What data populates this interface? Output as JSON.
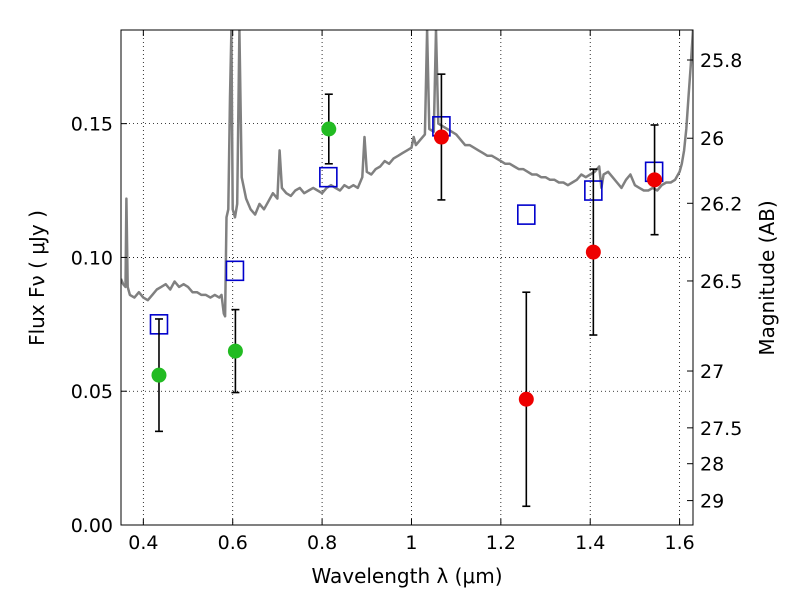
{
  "chart_data": {
    "type": "scatter",
    "title": "",
    "xlabel": "Wavelength  λ (μm)",
    "ylabel": "Flux  Fν  ( μJy )",
    "y2label": "Magnitude (AB)",
    "xlim": [
      0.35,
      1.63
    ],
    "ylim": [
      0.0,
      0.185
    ],
    "grid": true,
    "x_ticks": [
      {
        "value": 0.4,
        "label": "0.4"
      },
      {
        "value": 0.6,
        "label": "0.6"
      },
      {
        "value": 0.8,
        "label": "0.8"
      },
      {
        "value": 1.0,
        "label": "1"
      },
      {
        "value": 1.2,
        "label": "1.2"
      },
      {
        "value": 1.4,
        "label": "1.4"
      },
      {
        "value": 1.6,
        "label": "1.6"
      }
    ],
    "y_ticks": [
      {
        "value": 0.0,
        "label": "0.00"
      },
      {
        "value": 0.05,
        "label": "0.05"
      },
      {
        "value": 0.1,
        "label": "0.10"
      },
      {
        "value": 0.15,
        "label": "0.15"
      }
    ],
    "y2_ticks": [
      {
        "value": 25.8,
        "label": "25.8"
      },
      {
        "value": 26.0,
        "label": "26"
      },
      {
        "value": 26.2,
        "label": "26.2"
      },
      {
        "value": 26.5,
        "label": "26.5"
      },
      {
        "value": 27.0,
        "label": "27"
      },
      {
        "value": 27.5,
        "label": "27.5"
      },
      {
        "value": 28.0,
        "label": "28"
      },
      {
        "value": 29.0,
        "label": "29"
      }
    ],
    "series": [
      {
        "kind": "line",
        "color": "#808080",
        "points": [
          [
            0.35,
            0.092
          ],
          [
            0.355,
            0.09
          ],
          [
            0.36,
            0.089
          ],
          [
            0.362,
            0.122
          ],
          [
            0.365,
            0.089
          ],
          [
            0.37,
            0.086
          ],
          [
            0.38,
            0.085
          ],
          [
            0.39,
            0.087
          ],
          [
            0.4,
            0.085
          ],
          [
            0.41,
            0.084
          ],
          [
            0.42,
            0.086
          ],
          [
            0.43,
            0.088
          ],
          [
            0.44,
            0.089
          ],
          [
            0.45,
            0.09
          ],
          [
            0.46,
            0.088
          ],
          [
            0.47,
            0.091
          ],
          [
            0.48,
            0.089
          ],
          [
            0.49,
            0.09
          ],
          [
            0.5,
            0.089
          ],
          [
            0.51,
            0.087
          ],
          [
            0.52,
            0.087
          ],
          [
            0.53,
            0.086
          ],
          [
            0.54,
            0.086
          ],
          [
            0.55,
            0.085
          ],
          [
            0.56,
            0.086
          ],
          [
            0.57,
            0.085
          ],
          [
            0.575,
            0.086
          ],
          [
            0.58,
            0.079
          ],
          [
            0.583,
            0.078
          ],
          [
            0.586,
            0.115
          ],
          [
            0.59,
            0.118
          ],
          [
            0.594,
            0.16
          ],
          [
            0.597,
            0.185
          ],
          [
            0.6,
            0.118
          ],
          [
            0.605,
            0.115
          ],
          [
            0.61,
            0.12
          ],
          [
            0.615,
            0.185
          ],
          [
            0.62,
            0.13
          ],
          [
            0.63,
            0.122
          ],
          [
            0.64,
            0.118
          ],
          [
            0.65,
            0.116
          ],
          [
            0.66,
            0.12
          ],
          [
            0.67,
            0.118
          ],
          [
            0.68,
            0.121
          ],
          [
            0.69,
            0.124
          ],
          [
            0.7,
            0.122
          ],
          [
            0.705,
            0.14
          ],
          [
            0.71,
            0.126
          ],
          [
            0.72,
            0.124
          ],
          [
            0.73,
            0.123
          ],
          [
            0.74,
            0.125
          ],
          [
            0.75,
            0.126
          ],
          [
            0.76,
            0.124
          ],
          [
            0.77,
            0.125
          ],
          [
            0.78,
            0.126
          ],
          [
            0.79,
            0.125
          ],
          [
            0.8,
            0.124
          ],
          [
            0.81,
            0.126
          ],
          [
            0.82,
            0.127
          ],
          [
            0.83,
            0.126
          ],
          [
            0.84,
            0.125
          ],
          [
            0.85,
            0.127
          ],
          [
            0.86,
            0.126
          ],
          [
            0.87,
            0.127
          ],
          [
            0.88,
            0.126
          ],
          [
            0.89,
            0.13
          ],
          [
            0.895,
            0.145
          ],
          [
            0.9,
            0.132
          ],
          [
            0.91,
            0.131
          ],
          [
            0.92,
            0.133
          ],
          [
            0.93,
            0.134
          ],
          [
            0.94,
            0.136
          ],
          [
            0.95,
            0.135
          ],
          [
            0.96,
            0.137
          ],
          [
            0.97,
            0.138
          ],
          [
            0.98,
            0.139
          ],
          [
            0.99,
            0.14
          ],
          [
            1.0,
            0.141
          ],
          [
            1.005,
            0.145
          ],
          [
            1.01,
            0.142
          ],
          [
            1.02,
            0.144
          ],
          [
            1.03,
            0.146
          ],
          [
            1.035,
            0.185
          ],
          [
            1.04,
            0.148
          ],
          [
            1.05,
            0.147
          ],
          [
            1.055,
            0.185
          ],
          [
            1.06,
            0.15
          ],
          [
            1.07,
            0.149
          ],
          [
            1.08,
            0.148
          ],
          [
            1.09,
            0.147
          ],
          [
            1.1,
            0.146
          ],
          [
            1.11,
            0.144
          ],
          [
            1.12,
            0.142
          ],
          [
            1.13,
            0.142
          ],
          [
            1.14,
            0.141
          ],
          [
            1.15,
            0.14
          ],
          [
            1.16,
            0.139
          ],
          [
            1.17,
            0.138
          ],
          [
            1.18,
            0.138
          ],
          [
            1.19,
            0.137
          ],
          [
            1.2,
            0.136
          ],
          [
            1.21,
            0.135
          ],
          [
            1.22,
            0.135
          ],
          [
            1.23,
            0.134
          ],
          [
            1.24,
            0.133
          ],
          [
            1.25,
            0.133
          ],
          [
            1.26,
            0.132
          ],
          [
            1.27,
            0.131
          ],
          [
            1.28,
            0.131
          ],
          [
            1.29,
            0.13
          ],
          [
            1.3,
            0.13
          ],
          [
            1.31,
            0.129
          ],
          [
            1.32,
            0.129
          ],
          [
            1.33,
            0.128
          ],
          [
            1.34,
            0.128
          ],
          [
            1.35,
            0.127
          ],
          [
            1.36,
            0.128
          ],
          [
            1.37,
            0.129
          ],
          [
            1.38,
            0.131
          ],
          [
            1.39,
            0.13
          ],
          [
            1.4,
            0.131
          ],
          [
            1.41,
            0.132
          ],
          [
            1.42,
            0.134
          ],
          [
            1.425,
            0.126
          ],
          [
            1.43,
            0.131
          ],
          [
            1.44,
            0.132
          ],
          [
            1.45,
            0.13
          ],
          [
            1.46,
            0.128
          ],
          [
            1.47,
            0.126
          ],
          [
            1.48,
            0.129
          ],
          [
            1.49,
            0.131
          ],
          [
            1.5,
            0.127
          ],
          [
            1.51,
            0.126
          ],
          [
            1.52,
            0.125
          ],
          [
            1.53,
            0.125
          ],
          [
            1.54,
            0.126
          ],
          [
            1.55,
            0.125
          ],
          [
            1.56,
            0.127
          ],
          [
            1.57,
            0.128
          ],
          [
            1.58,
            0.128
          ],
          [
            1.59,
            0.129
          ],
          [
            1.6,
            0.132
          ],
          [
            1.605,
            0.135
          ],
          [
            1.61,
            0.14
          ],
          [
            1.615,
            0.148
          ],
          [
            1.62,
            0.16
          ],
          [
            1.625,
            0.172
          ],
          [
            1.63,
            0.185
          ]
        ]
      },
      {
        "kind": "open-squares",
        "color": "#0000cc",
        "points": [
          [
            0.435,
            0.075
          ],
          [
            0.605,
            0.095
          ],
          [
            0.814,
            0.13
          ],
          [
            1.067,
            0.149
          ],
          [
            1.257,
            0.116
          ],
          [
            1.407,
            0.125
          ],
          [
            1.543,
            0.132
          ]
        ]
      },
      {
        "kind": "points-with-errors",
        "color": "#22bb22",
        "points": [
          {
            "x": 0.435,
            "y": 0.056,
            "yerr": 0.021
          },
          {
            "x": 0.606,
            "y": 0.065,
            "yerr": 0.0155
          },
          {
            "x": 0.815,
            "y": 0.148,
            "yerr": 0.013
          }
        ]
      },
      {
        "kind": "points-with-errors",
        "color": "#ee0000",
        "points": [
          {
            "x": 1.067,
            "y": 0.145,
            "yerr": 0.0235
          },
          {
            "x": 1.257,
            "y": 0.047,
            "yerr": 0.04
          },
          {
            "x": 1.407,
            "y": 0.102,
            "yerr": 0.031
          },
          {
            "x": 1.544,
            "y": 0.129,
            "yerr": 0.0205
          }
        ]
      }
    ]
  }
}
